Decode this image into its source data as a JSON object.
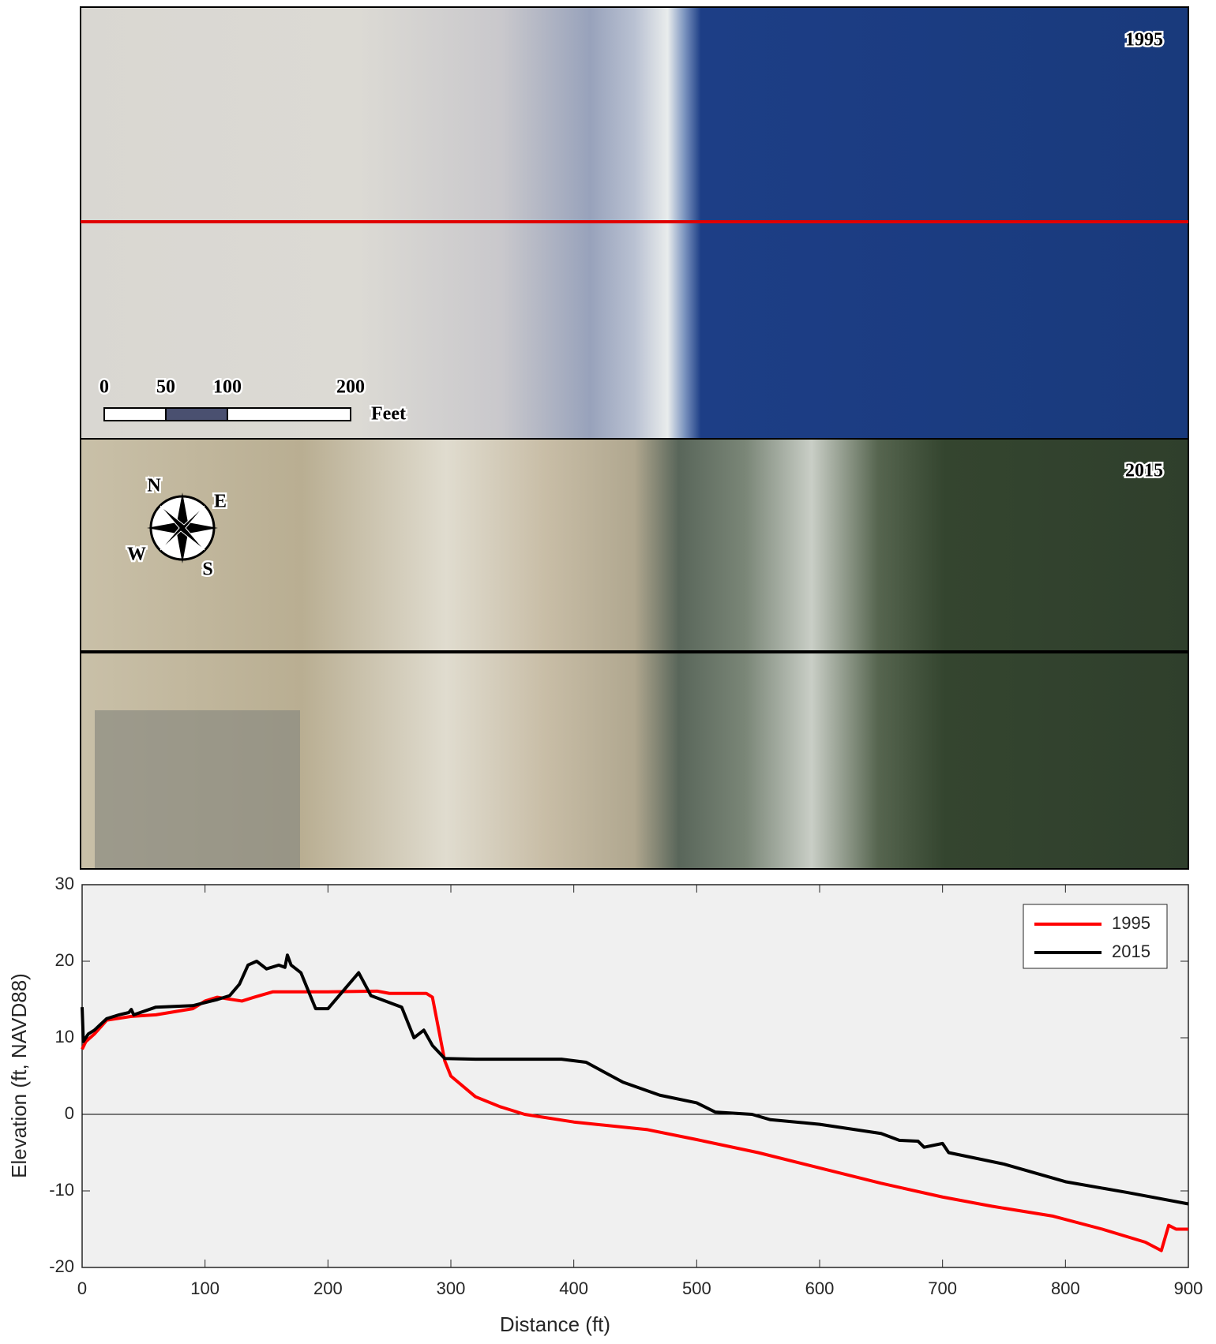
{
  "panels": [
    {
      "label": "1995"
    },
    {
      "label": "2015"
    }
  ],
  "scale_bar": {
    "ticks": [
      0,
      50,
      100,
      200
    ],
    "unit": "Feet"
  },
  "compass": {
    "north": "N",
    "east": "E",
    "south": "S",
    "west": "W"
  },
  "chart_data": {
    "type": "line",
    "xlabel": "Distance (ft)",
    "ylabel": "Elevation (ft, NAVD88)",
    "xlim": [
      0,
      900
    ],
    "ylim": [
      -20,
      30
    ],
    "xticks": [
      0,
      100,
      200,
      300,
      400,
      500,
      600,
      700,
      800,
      900
    ],
    "yticks": [
      -20,
      -10,
      0,
      10,
      20,
      30
    ],
    "zero_line": true,
    "legend": "upper right",
    "series": [
      {
        "name": "1995",
        "color": "#ff0000",
        "x": [
          0,
          3,
          10,
          20,
          40,
          60,
          90,
          100,
          110,
          130,
          140,
          155,
          200,
          240,
          250,
          280,
          285,
          295,
          300,
          320,
          340,
          360,
          400,
          460,
          500,
          550,
          600,
          650,
          700,
          740,
          790,
          830,
          865,
          878,
          884,
          890,
          900
        ],
        "values": [
          8.5,
          9.5,
          10.5,
          12.3,
          12.8,
          13,
          13.8,
          14.8,
          15.3,
          14.8,
          15.3,
          16,
          16,
          16.1,
          15.8,
          15.8,
          15.3,
          7,
          5,
          2.3,
          1,
          0,
          -1,
          -2,
          -3.3,
          -5,
          -7,
          -9,
          -10.8,
          -12,
          -13.3,
          -15,
          -16.7,
          -17.8,
          -14.5,
          -15,
          -15
        ]
      },
      {
        "name": "2015",
        "color": "#000000",
        "x": [
          0,
          1,
          5,
          10,
          20,
          30,
          38,
          40,
          42,
          60,
          90,
          110,
          120,
          128,
          135,
          142,
          150,
          160,
          165,
          167,
          170,
          178,
          190,
          200,
          225,
          235,
          260,
          270,
          278,
          285,
          295,
          320,
          390,
          410,
          440,
          470,
          500,
          515,
          545,
          560,
          600,
          650,
          665,
          680,
          685,
          700,
          705,
          750,
          800,
          850,
          900
        ],
        "values": [
          14,
          9.5,
          10.5,
          11,
          12.5,
          13,
          13.3,
          13.7,
          13,
          14,
          14.2,
          15,
          15.5,
          17,
          19.5,
          20,
          19,
          19.5,
          19.2,
          20.8,
          19.5,
          18.5,
          13.8,
          13.8,
          18.5,
          15.5,
          14,
          10,
          11,
          9,
          7.3,
          7.2,
          7.2,
          6.8,
          4.2,
          2.5,
          1.5,
          0.3,
          0,
          -0.7,
          -1.3,
          -2.5,
          -3.4,
          -3.5,
          -4.3,
          -3.8,
          -5,
          -6.5,
          -8.8,
          -10.2,
          -11.7
        ]
      }
    ]
  }
}
